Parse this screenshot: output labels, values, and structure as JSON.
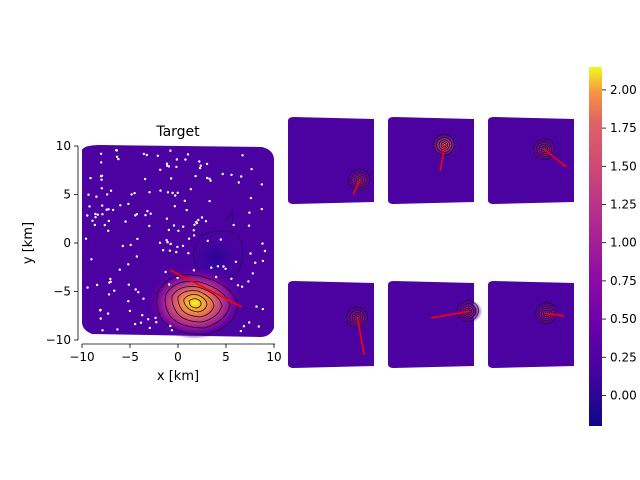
{
  "chart_data": [
    {
      "type": "heatmap",
      "title": "Target",
      "xlabel": "x [km]",
      "ylabel": "y [km]",
      "xlim": [
        -10,
        10
      ],
      "ylim": [
        -10,
        10
      ],
      "xticks": [
        -10,
        -5,
        0,
        5,
        10
      ],
      "yticks": [
        -10,
        -5,
        0,
        5,
        10
      ],
      "xtick_labels": [
        "−10",
        "−5",
        "0",
        "5",
        "10"
      ],
      "ytick_labels": [
        "−10",
        "−5",
        "0",
        "5",
        "10"
      ],
      "colormap": "plasma",
      "peak": {
        "x": 1.8,
        "y": -6.3,
        "value": 2.1
      },
      "trough": {
        "x": 4.5,
        "y": -2.0,
        "value": -0.2
      },
      "fault_line": {
        "x": [
          -0.8,
          6.5
        ],
        "y": [
          -3.0,
          -6.8
        ]
      },
      "grid": false
    },
    {
      "type": "heatmap",
      "panels": [
        {
          "row": 1,
          "col": 1,
          "peak": [
            6.5,
            -4.5
          ],
          "line_end": [
            5.0,
            -7.8
          ]
        },
        {
          "row": 1,
          "col": 2,
          "peak": [
            3.0,
            3.5
          ],
          "line_end": [
            2.0,
            -2.5
          ]
        },
        {
          "row": 1,
          "col": 3,
          "peak": [
            3.0,
            2.5
          ],
          "line_end": [
            8.0,
            -1.5
          ]
        },
        {
          "row": 2,
          "col": 1,
          "peak": [
            6.0,
            1.5
          ],
          "line_end": [
            7.5,
            -7.0
          ]
        },
        {
          "row": 2,
          "col": 2,
          "peak": [
            8.5,
            3.0
          ],
          "line_end": [
            0.0,
            1.5
          ]
        },
        {
          "row": 2,
          "col": 3,
          "peak": [
            3.5,
            2.5
          ],
          "line_end": [
            7.5,
            2.0
          ]
        }
      ],
      "colormap": "plasma",
      "axes_visible": false
    },
    {
      "type": "colorbar",
      "colormap": "plasma",
      "range": [
        -0.2,
        2.15
      ],
      "ticks": [
        0.0,
        0.25,
        0.5,
        0.75,
        1.0,
        1.25,
        1.5,
        1.75,
        2.0
      ],
      "tick_labels": [
        "0.00",
        "0.25",
        "0.50",
        "0.75",
        "1.00",
        "1.25",
        "1.50",
        "1.75",
        "2.00"
      ]
    }
  ],
  "colors": {
    "background": "#0d0887",
    "line": "#ff0000",
    "contour": "#000000",
    "station": "#ffffff"
  }
}
